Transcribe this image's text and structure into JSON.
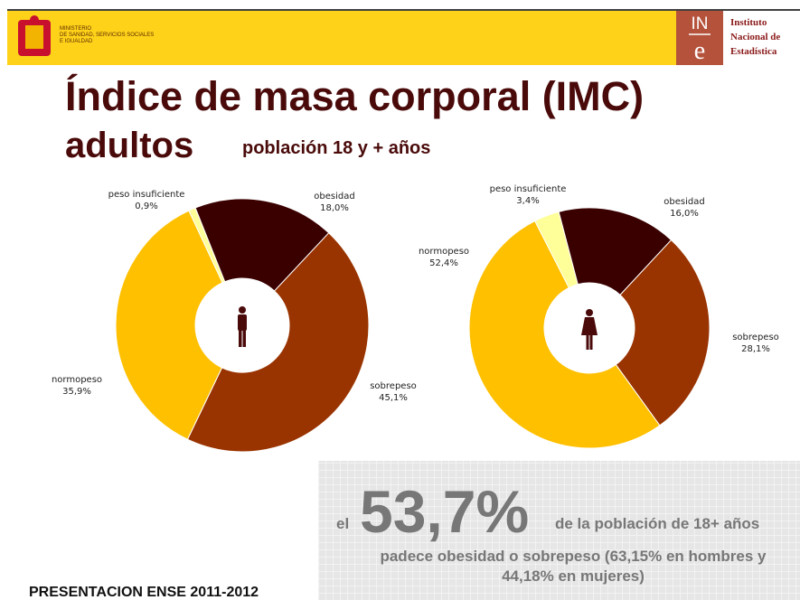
{
  "header": {
    "ministry": [
      "MINISTERIO",
      "DE SANIDAD, SERVICIOS SOCIALES",
      "E IGUALDAD"
    ],
    "ine_logo": [
      "IN",
      "e"
    ],
    "ine_name": [
      "Instituto",
      "Nacional de",
      "Estadística"
    ]
  },
  "title": {
    "line1": "Índice de masa corporal (IMC)",
    "line2": "adultos",
    "subtitle": "población 18 y + años"
  },
  "chart_data": [
    {
      "type": "pie",
      "categories": [
        "peso insuficiente",
        "obesidad",
        "sobrepeso",
        "normopeso"
      ],
      "values": [
        0.9,
        18.0,
        45.1,
        35.9
      ],
      "value_labels": [
        "0,9%",
        "18,0%",
        "45,1%",
        "35,9%"
      ],
      "colors": [
        "#ffff99",
        "#3a0000",
        "#993300",
        "#ffc000"
      ]
    },
    {
      "type": "pie",
      "categories": [
        "peso insuficiente",
        "obesidad",
        "sobrepeso",
        "normopeso"
      ],
      "values": [
        3.4,
        16.0,
        28.1,
        52.4
      ],
      "value_labels": [
        "3,4%",
        "16,0%",
        "28,1%",
        "52,4%"
      ],
      "colors": [
        "#ffff99",
        "#3a0000",
        "#993300",
        "#ffc000"
      ]
    }
  ],
  "callout": {
    "prefix": "el",
    "figure": "53,7%",
    "suffix": "de la población de 18+ años",
    "lines": [
      "padece obesidad o sobrepeso (63,15% en hombres y",
      "44,18% en mujeres)"
    ]
  },
  "footer": "PRESENTACION ENSE 2011-2012"
}
